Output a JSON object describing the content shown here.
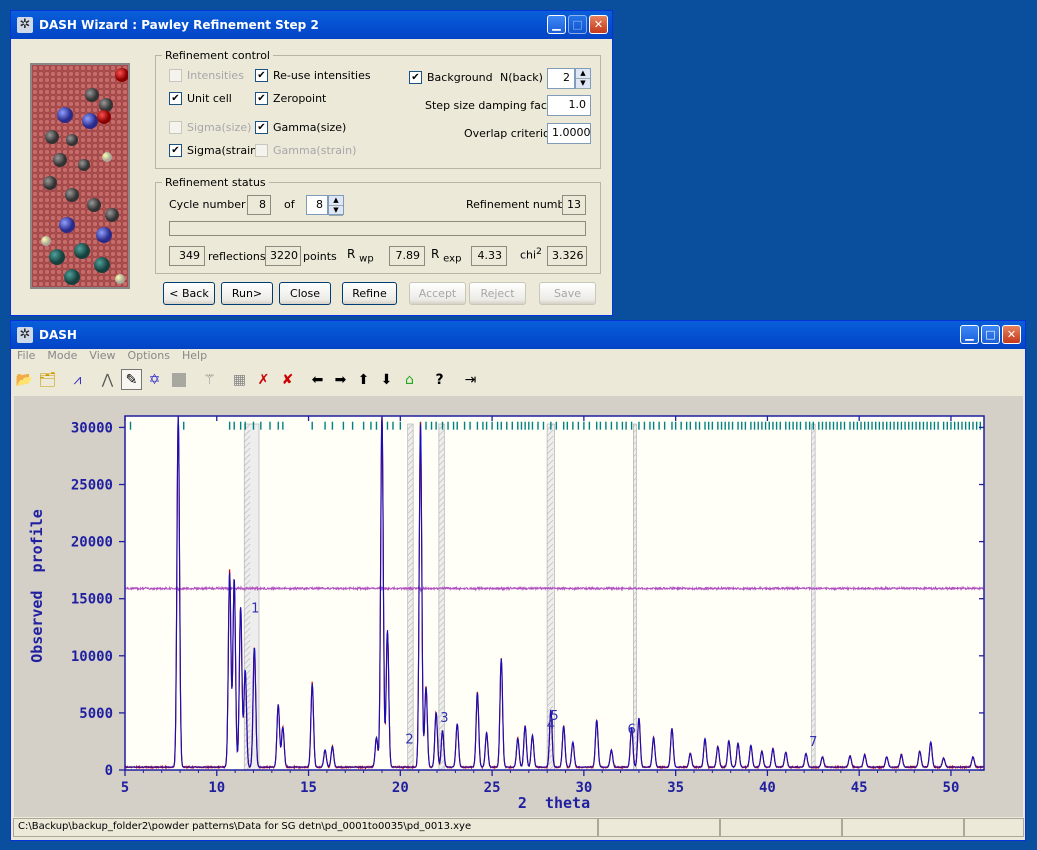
{
  "wizard": {
    "title": "DASH Wizard : Pawley Refinement Step 2",
    "refinement_control": {
      "legend": "Refinement control",
      "intensities": "Intensities",
      "reuse_intensities": "Re-use intensities",
      "unit_cell": "Unit cell",
      "zeropoint": "Zeropoint",
      "sigma_size": "Sigma(size)",
      "gamma_size": "Gamma(size)",
      "sigma_strain": "Sigma(strain)",
      "gamma_strain": "Gamma(strain)",
      "background": "Background",
      "nback_label": "N(back)",
      "nback_value": "2",
      "damping_label": "Step size damping factor",
      "damping_value": "1.0",
      "overlap_label": "Overlap criterion",
      "overlap_value": "1.0000"
    },
    "refinement_status": {
      "legend": "Refinement status",
      "cycle_label": "Cycle number",
      "cycle_value": "8",
      "of_label": "of",
      "of_value": "8",
      "refnum_label": "Refinement number",
      "refnum_value": "13",
      "reflections_value": "349",
      "reflections_label": "reflections",
      "points_value": "3220",
      "points_label": "points",
      "rwp_label": "R",
      "rwp_sub": "wp",
      "rwp_value": "7.89",
      "rexp_label": "R",
      "rexp_sub": "exp",
      "rexp_value": "4.33",
      "chi_label": "chi",
      "chi_sup": "2",
      "chi_value": "3.326"
    },
    "buttons": {
      "back": "< Back",
      "run": "Run>",
      "close": "Close",
      "refine": "Refine",
      "accept": "Accept",
      "reject": "Reject",
      "save": "Save"
    }
  },
  "dash": {
    "title": "DASH",
    "menu": [
      "File",
      "Mode",
      "View",
      "Options",
      "Help"
    ],
    "toolbar_icons": [
      "open-icon",
      "open-project-icon",
      "profile-icon",
      "peak-icon",
      "pointer-icon",
      "star-icon",
      "gray-box-icon",
      "wand-icon",
      "grid-icon",
      "delete-x-icon",
      "delete-all-icon",
      "arrow-left-icon",
      "arrow-right-icon",
      "arrow-up-icon",
      "arrow-down-icon",
      "home-icon",
      "help-icon",
      "exit-icon"
    ],
    "status_path": "C:\\Backup\\backup_folder2\\powder patterns\\Data for SG detn\\pd_0001to0035\\pd_0013.xye"
  },
  "chart_data": {
    "type": "line",
    "xlabel": "2  theta",
    "ylabel": "Observed  profile",
    "xlim": [
      5,
      51.8
    ],
    "ylim": [
      0,
      31000
    ],
    "x_ticks": [
      5,
      10,
      15,
      20,
      25,
      30,
      35,
      40,
      45,
      50
    ],
    "y_ticks": [
      0,
      5000,
      10000,
      15000,
      20000,
      25000,
      30000
    ],
    "colors": {
      "observed": "#d00000",
      "calculated": "#1010c0",
      "difference": "#b050c0",
      "tick_marks": "#008080",
      "axis": "#1f1fa0"
    },
    "difference_offset": 15900,
    "peaks": [
      {
        "x": 7.9,
        "y": 31000
      },
      {
        "x": 10.7,
        "y": 17000
      },
      {
        "x": 10.95,
        "y": 16500
      },
      {
        "x": 11.3,
        "y": 14000
      },
      {
        "x": 11.55,
        "y": 8500
      },
      {
        "x": 12.05,
        "y": 10500
      },
      {
        "x": 13.35,
        "y": 5500
      },
      {
        "x": 13.6,
        "y": 3500
      },
      {
        "x": 15.2,
        "y": 7300
      },
      {
        "x": 15.9,
        "y": 1500
      },
      {
        "x": 16.3,
        "y": 1800
      },
      {
        "x": 18.7,
        "y": 2600
      },
      {
        "x": 19.0,
        "y": 31000
      },
      {
        "x": 19.3,
        "y": 12000
      },
      {
        "x": 21.1,
        "y": 30000
      },
      {
        "x": 21.4,
        "y": 7000
      },
      {
        "x": 21.95,
        "y": 4800
      },
      {
        "x": 22.3,
        "y": 3200
      },
      {
        "x": 23.1,
        "y": 3800
      },
      {
        "x": 24.2,
        "y": 6500
      },
      {
        "x": 24.7,
        "y": 3000
      },
      {
        "x": 25.5,
        "y": 9500
      },
      {
        "x": 26.4,
        "y": 2500
      },
      {
        "x": 26.8,
        "y": 3600
      },
      {
        "x": 27.2,
        "y": 2800
      },
      {
        "x": 28.2,
        "y": 5000
      },
      {
        "x": 28.9,
        "y": 3600
      },
      {
        "x": 29.4,
        "y": 2200
      },
      {
        "x": 30.7,
        "y": 4100
      },
      {
        "x": 31.5,
        "y": 1500
      },
      {
        "x": 32.6,
        "y": 3500
      },
      {
        "x": 33.0,
        "y": 4300
      },
      {
        "x": 33.8,
        "y": 2600
      },
      {
        "x": 34.8,
        "y": 3400
      },
      {
        "x": 35.8,
        "y": 1200
      },
      {
        "x": 36.6,
        "y": 2500
      },
      {
        "x": 37.3,
        "y": 1800
      },
      {
        "x": 37.9,
        "y": 2300
      },
      {
        "x": 38.4,
        "y": 2100
      },
      {
        "x": 39.1,
        "y": 1900
      },
      {
        "x": 39.7,
        "y": 1400
      },
      {
        "x": 40.3,
        "y": 1600
      },
      {
        "x": 41.0,
        "y": 1300
      },
      {
        "x": 42.1,
        "y": 1200
      },
      {
        "x": 43.0,
        "y": 900
      },
      {
        "x": 44.5,
        "y": 1000
      },
      {
        "x": 45.3,
        "y": 1100
      },
      {
        "x": 46.5,
        "y": 900
      },
      {
        "x": 47.3,
        "y": 1100
      },
      {
        "x": 48.3,
        "y": 1400
      },
      {
        "x": 48.9,
        "y": 2200
      },
      {
        "x": 49.6,
        "y": 800
      },
      {
        "x": 51.2,
        "y": 900
      }
    ],
    "excluded_regions": [
      [
        11.5,
        12.3
      ],
      [
        20.4,
        20.7
      ],
      [
        22.1,
        22.4
      ],
      [
        28.0,
        28.4
      ],
      [
        32.7,
        32.85
      ],
      [
        42.4,
        42.6
      ]
    ],
    "region_labels": [
      {
        "text": "1",
        "x": 12.1,
        "y": 13800
      },
      {
        "text": "2",
        "x": 20.5,
        "y": 2300
      },
      {
        "text": "3",
        "x": 22.4,
        "y": 4200
      },
      {
        "text": "4",
        "x": 28.2,
        "y": 3600
      },
      {
        "text": "5",
        "x": 28.4,
        "y": 4400
      },
      {
        "text": "6",
        "x": 32.6,
        "y": 3200
      },
      {
        "text": "7",
        "x": 42.5,
        "y": 2100
      }
    ],
    "tick_positions": [
      5.3,
      7.9,
      8.2,
      10.7,
      10.95,
      11.3,
      11.55,
      12.0,
      12.4,
      12.9,
      13.35,
      13.6,
      15.2,
      15.9,
      16.3,
      16.9,
      17.4,
      18.0,
      18.4,
      18.7,
      19.0,
      19.3,
      19.6,
      20.0,
      21.1,
      21.4,
      21.7,
      21.95,
      22.3,
      22.6,
      22.9,
      23.1,
      23.5,
      23.8,
      24.2,
      24.5,
      24.7,
      25.0,
      25.3,
      25.5,
      25.8,
      26.1,
      26.4,
      26.6,
      26.8,
      27.0,
      27.2,
      27.5,
      27.8,
      28.2,
      28.5,
      28.9,
      29.1,
      29.4,
      29.7,
      30.0,
      30.3,
      30.7,
      30.9,
      31.2,
      31.5,
      31.8,
      32.1,
      32.3,
      32.6,
      33.0,
      33.3,
      33.6,
      33.8,
      34.1,
      34.4,
      34.8,
      35.0,
      35.3,
      35.6,
      35.8,
      36.1,
      36.3,
      36.6,
      36.8,
      37.0,
      37.3,
      37.5,
      37.7,
      37.9,
      38.1,
      38.4,
      38.6,
      38.8,
      39.1,
      39.3,
      39.5,
      39.7,
      39.9,
      40.1,
      40.3,
      40.5,
      40.7,
      41.0,
      41.2,
      41.4,
      41.6,
      41.8,
      42.1,
      42.3,
      42.5,
      42.8,
      43.0,
      43.2,
      43.4,
      43.6,
      43.8,
      44.0,
      44.2,
      44.5,
      44.7,
      44.9,
      45.1,
      45.3,
      45.5,
      45.7,
      45.9,
      46.1,
      46.3,
      46.5,
      46.7,
      46.9,
      47.1,
      47.3,
      47.5,
      47.7,
      47.9,
      48.1,
      48.3,
      48.5,
      48.7,
      48.9,
      49.1,
      49.3,
      49.6,
      49.8,
      50.0,
      50.2,
      50.4,
      50.6,
      50.8,
      51.0,
      51.2,
      51.4,
      51.6
    ]
  }
}
